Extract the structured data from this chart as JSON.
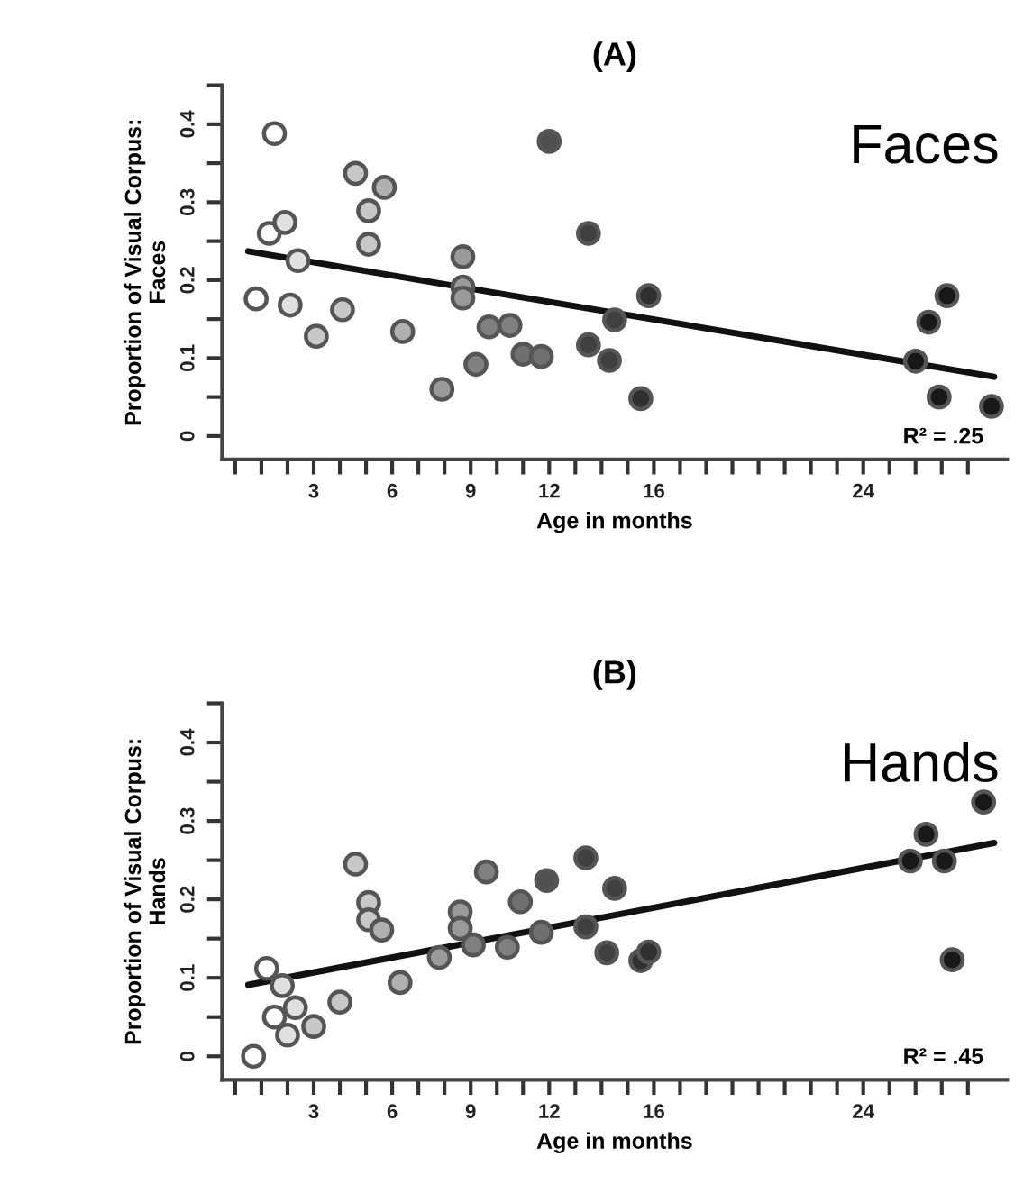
{
  "chart_data": [
    {
      "type": "scatter",
      "title": "(A)",
      "xlabel": "Age in months",
      "ylabel": "Proportion of Visual Corpus:\nFaces",
      "annotations": [
        "Faces",
        "R² = .25"
      ],
      "xlim": [
        -0.5,
        29.5
      ],
      "ylim": [
        -0.03,
        0.45
      ],
      "xticks": [
        {
          "value": 0,
          "label": null
        },
        {
          "value": 1,
          "label": null
        },
        {
          "value": 2,
          "label": null
        },
        3,
        {
          "value": 4,
          "label": null
        },
        {
          "value": 5,
          "label": null
        },
        6,
        {
          "value": 7,
          "label": null
        },
        {
          "value": 8,
          "label": null
        },
        9,
        {
          "value": 10,
          "label": null
        },
        {
          "value": 11,
          "label": null
        },
        12,
        {
          "value": 13,
          "label": null
        },
        {
          "value": 14,
          "label": null
        },
        {
          "value": 15,
          "label": null
        },
        16,
        {
          "value": 17,
          "label": null
        },
        {
          "value": 18,
          "label": null
        },
        {
          "value": 19,
          "label": null
        },
        {
          "value": 20,
          "label": null
        },
        {
          "value": 21,
          "label": null
        },
        {
          "value": 22,
          "label": null
        },
        {
          "value": 23,
          "label": null
        },
        24,
        {
          "value": 25,
          "label": null
        },
        {
          "value": 26,
          "label": null
        },
        {
          "value": 27,
          "label": null
        },
        {
          "value": 28,
          "label": null
        }
      ],
      "yticks": [
        0,
        {
          "value": 0.05,
          "label": null
        },
        0.1,
        {
          "value": 0.15,
          "label": null
        },
        0.2,
        {
          "value": 0.25,
          "label": null
        },
        0.3,
        {
          "value": 0.35,
          "label": null
        },
        0.4,
        {
          "value": 0.45,
          "label": null
        }
      ],
      "grid": false,
      "legend": false,
      "series": [
        {
          "marker": "circle",
          "x": [
            0.8,
            1.3,
            1.5,
            1.9,
            2.1,
            2.4,
            3.1,
            4.1,
            4.6,
            5.1,
            5.1,
            5.7,
            6.4,
            7.9,
            8.7,
            8.7,
            8.7,
            9.2,
            9.7,
            10.5,
            11.0,
            11.7,
            12.0,
            13.5,
            13.5,
            14.3,
            14.5,
            15.5,
            15.8,
            26.0,
            26.5,
            27.2,
            26.9,
            28.9
          ],
          "values": [
            0.176,
            0.26,
            0.388,
            0.274,
            0.168,
            0.225,
            0.128,
            0.162,
            0.337,
            0.246,
            0.289,
            0.319,
            0.134,
            0.06,
            0.23,
            0.191,
            0.177,
            0.092,
            0.14,
            0.142,
            0.105,
            0.102,
            0.378,
            0.26,
            0.117,
            0.097,
            0.149,
            0.048,
            0.18,
            0.096,
            0.146,
            0.18,
            0.05,
            0.038
          ],
          "colors": [
            "#ffffff",
            "#ffffff",
            "#ffffff",
            "#e0e0e0",
            "#e0e0e0",
            "#e0e0e0",
            "#c8c8c8",
            "#c8c8c8",
            "#c8c8c8",
            "#c8c8c8",
            "#c8c8c8",
            "#b0b0b0",
            "#b0b0b0",
            "#9a9a9a",
            "#9a9a9a",
            "#9a9a9a",
            "#9a9a9a",
            "#808080",
            "#808080",
            "#808080",
            "#707070",
            "#707070",
            "#505050",
            "#404040",
            "#404040",
            "#404040",
            "#404040",
            "#303030",
            "#303030",
            "#181818",
            "#181818",
            "#181818",
            "#181818",
            "#181818"
          ]
        },
        {
          "type": "line",
          "color": "#111111",
          "x": [
            0.5,
            29.0
          ],
          "values": [
            0.237,
            0.076
          ]
        }
      ]
    },
    {
      "type": "scatter",
      "title": "(B)",
      "xlabel": "Age in months",
      "ylabel": "Proportion of Visual Corpus:\nHands",
      "annotations": [
        "Hands",
        "R² = .45"
      ],
      "xlim": [
        -0.5,
        29.5
      ],
      "ylim": [
        -0.03,
        0.45
      ],
      "xticks": [
        {
          "value": 0,
          "label": null
        },
        {
          "value": 1,
          "label": null
        },
        {
          "value": 2,
          "label": null
        },
        3,
        {
          "value": 4,
          "label": null
        },
        {
          "value": 5,
          "label": null
        },
        6,
        {
          "value": 7,
          "label": null
        },
        {
          "value": 8,
          "label": null
        },
        9,
        {
          "value": 10,
          "label": null
        },
        {
          "value": 11,
          "label": null
        },
        12,
        {
          "value": 13,
          "label": null
        },
        {
          "value": 14,
          "label": null
        },
        {
          "value": 15,
          "label": null
        },
        16,
        {
          "value": 17,
          "label": null
        },
        {
          "value": 18,
          "label": null
        },
        {
          "value": 19,
          "label": null
        },
        {
          "value": 20,
          "label": null
        },
        {
          "value": 21,
          "label": null
        },
        {
          "value": 22,
          "label": null
        },
        {
          "value": 23,
          "label": null
        },
        24,
        {
          "value": 25,
          "label": null
        },
        {
          "value": 26,
          "label": null
        },
        {
          "value": 27,
          "label": null
        },
        {
          "value": 28,
          "label": null
        }
      ],
      "yticks": [
        0,
        {
          "value": 0.05,
          "label": null
        },
        0.1,
        {
          "value": 0.15,
          "label": null
        },
        0.2,
        {
          "value": 0.25,
          "label": null
        },
        0.3,
        {
          "value": 0.35,
          "label": null
        },
        0.4,
        {
          "value": 0.45,
          "label": null
        }
      ],
      "grid": false,
      "legend": false,
      "series": [
        {
          "marker": "circle",
          "x": [
            0.7,
            1.2,
            1.5,
            1.8,
            2.0,
            2.3,
            3.0,
            4.0,
            4.6,
            5.1,
            5.1,
            5.6,
            6.3,
            7.8,
            8.6,
            8.6,
            9.1,
            9.6,
            10.4,
            10.9,
            11.7,
            11.9,
            13.4,
            13.4,
            14.2,
            14.5,
            15.5,
            15.8,
            25.8,
            26.4,
            27.1,
            27.4,
            28.6
          ],
          "values": [
            0.0,
            0.112,
            0.05,
            0.09,
            0.027,
            0.062,
            0.038,
            0.069,
            0.245,
            0.196,
            0.174,
            0.161,
            0.094,
            0.126,
            0.184,
            0.163,
            0.142,
            0.235,
            0.139,
            0.197,
            0.158,
            0.224,
            0.253,
            0.165,
            0.132,
            0.214,
            0.122,
            0.133,
            0.249,
            0.283,
            0.249,
            0.123,
            0.324
          ],
          "colors": [
            "#ffffff",
            "#ffffff",
            "#ffffff",
            "#e0e0e0",
            "#e0e0e0",
            "#e0e0e0",
            "#c8c8c8",
            "#c8c8c8",
            "#c8c8c8",
            "#c8c8c8",
            "#c8c8c8",
            "#b0b0b0",
            "#b0b0b0",
            "#9a9a9a",
            "#9a9a9a",
            "#9a9a9a",
            "#808080",
            "#808080",
            "#808080",
            "#707070",
            "#707070",
            "#505050",
            "#404040",
            "#404040",
            "#404040",
            "#404040",
            "#303030",
            "#303030",
            "#181818",
            "#181818",
            "#181818",
            "#181818",
            "#181818"
          ]
        },
        {
          "type": "line",
          "color": "#111111",
          "x": [
            0.5,
            29.0
          ],
          "values": [
            0.091,
            0.272
          ]
        }
      ]
    }
  ]
}
